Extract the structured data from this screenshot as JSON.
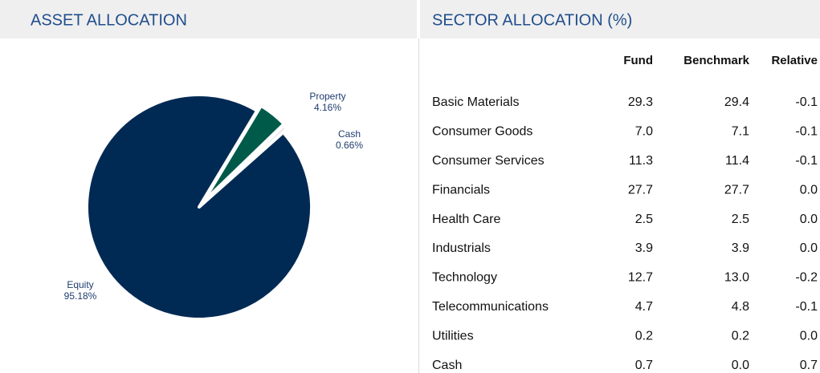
{
  "chart_data": {
    "type": "pie",
    "title": "ASSET ALLOCATION",
    "categories": [
      "Property",
      "Cash",
      "Equity"
    ],
    "values": [
      4.16,
      0.66,
      95.18
    ],
    "value_labels": [
      "4.16%",
      "0.66%",
      "95.18%"
    ],
    "colors": [
      "#005a4a",
      "#dfe6ea",
      "#002a54"
    ]
  },
  "sector_table": {
    "title": "SECTOR ALLOCATION (%)",
    "columns": [
      "Fund",
      "Benchmark",
      "Relative"
    ],
    "rows": [
      [
        "Basic Materials",
        "29.3",
        "29.4",
        "-0.1"
      ],
      [
        "Consumer Goods",
        "7.0",
        "7.1",
        "-0.1"
      ],
      [
        "Consumer Services",
        "11.3",
        "11.4",
        "-0.1"
      ],
      [
        "Financials",
        "27.7",
        "27.7",
        "0.0"
      ],
      [
        "Health Care",
        "2.5",
        "2.5",
        "0.0"
      ],
      [
        "Industrials",
        "3.9",
        "3.9",
        "0.0"
      ],
      [
        "Technology",
        "12.7",
        "13.0",
        "-0.2"
      ],
      [
        "Telecommunications",
        "4.7",
        "4.8",
        "-0.1"
      ],
      [
        "Utilities",
        "0.2",
        "0.2",
        "0.0"
      ],
      [
        "Cash",
        "0.7",
        "0.0",
        "0.7"
      ]
    ]
  }
}
